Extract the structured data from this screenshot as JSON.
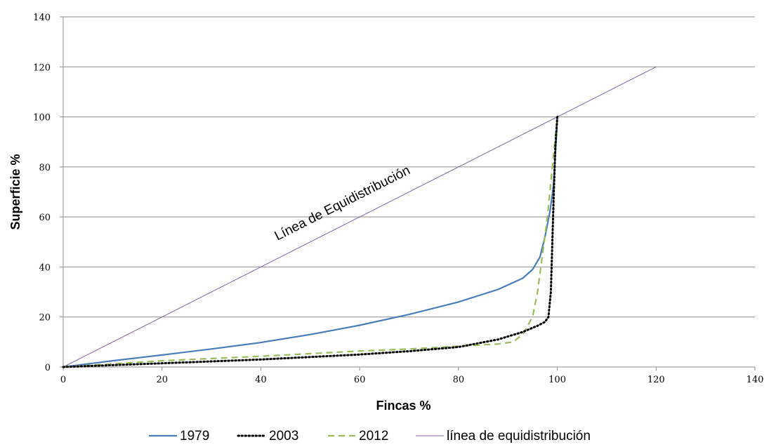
{
  "chart_data": {
    "type": "line",
    "title": "",
    "xlabel": "Fincas %",
    "ylabel": "Superficie %",
    "xlim": [
      0,
      140
    ],
    "ylim": [
      0,
      140
    ],
    "x_ticks": [
      "0",
      "20",
      "40",
      "60",
      "80",
      "100",
      "120",
      "140"
    ],
    "y_ticks": [
      "0",
      "20",
      "40",
      "60",
      "80",
      "100",
      "120",
      "140"
    ],
    "grid": "horizontal",
    "legend_position": "bottom",
    "annotation": "Línea de Equidistribución",
    "series": [
      {
        "name": "1979",
        "color": "#4a7ebb",
        "style": "solid",
        "points": [
          [
            0,
            0
          ],
          [
            10,
            2.5
          ],
          [
            20,
            4.8
          ],
          [
            30,
            7.2
          ],
          [
            40,
            9.8
          ],
          [
            50,
            13
          ],
          [
            60,
            16.7
          ],
          [
            70,
            21
          ],
          [
            80,
            26
          ],
          [
            88,
            31
          ],
          [
            93,
            35.5
          ],
          [
            95,
            39
          ],
          [
            96.5,
            44
          ],
          [
            97.5,
            52
          ],
          [
            98.5,
            62
          ],
          [
            99.2,
            72
          ],
          [
            99.6,
            85
          ],
          [
            100,
            100
          ]
        ]
      },
      {
        "name": "2003",
        "color": "#000000",
        "style": "dotted",
        "points": [
          [
            0,
            0
          ],
          [
            20,
            1.5
          ],
          [
            40,
            3
          ],
          [
            60,
            5
          ],
          [
            70,
            6.3
          ],
          [
            80,
            8
          ],
          [
            88,
            11
          ],
          [
            93,
            14
          ],
          [
            96,
            16.5
          ],
          [
            97.5,
            18
          ],
          [
            98.2,
            20
          ],
          [
            98.7,
            30
          ],
          [
            99,
            50
          ],
          [
            99.3,
            70
          ],
          [
            99.6,
            88
          ],
          [
            100,
            100
          ]
        ]
      },
      {
        "name": "2012",
        "color": "#9bbb59",
        "style": "dashed",
        "points": [
          [
            0,
            0
          ],
          [
            20,
            2.5
          ],
          [
            40,
            4.3
          ],
          [
            60,
            6.4
          ],
          [
            70,
            7.2
          ],
          [
            80,
            8.3
          ],
          [
            88,
            9.2
          ],
          [
            91,
            10
          ],
          [
            93,
            13
          ],
          [
            95,
            20
          ],
          [
            96,
            30
          ],
          [
            97,
            45
          ],
          [
            98,
            60
          ],
          [
            99,
            80
          ],
          [
            99.5,
            90
          ],
          [
            100,
            100
          ]
        ]
      },
      {
        "name": "línea de equidistribución",
        "color": "#8064a2",
        "style": "thin",
        "points": [
          [
            0,
            0
          ],
          [
            120,
            120
          ]
        ]
      }
    ]
  }
}
